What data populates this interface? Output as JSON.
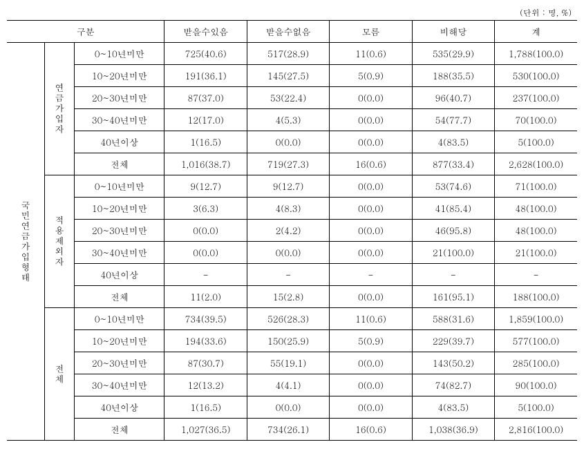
{
  "unit_label": "(단위 : 명, %)",
  "header": {
    "category": "구분",
    "col1": "받을수있음",
    "col2": "받을수없음",
    "col3": "모름",
    "col4": "비해당",
    "col5": "계"
  },
  "main_cat": "국민연금가입형태",
  "groups": [
    {
      "label": "연금가입자",
      "rows": [
        {
          "range": "0~10년미만",
          "c1": "725(40.6)",
          "c2": "517(28.9)",
          "c3": "11(0.6)",
          "c4": "535(29.9)",
          "c5": "1,788(100.0)"
        },
        {
          "range": "10~20년미만",
          "c1": "191(36.1)",
          "c2": "145(27.5)",
          "c3": "5(0.9)",
          "c4": "188(35.5)",
          "c5": "530(100.0)"
        },
        {
          "range": "20~30년미만",
          "c1": "87(37.0)",
          "c2": "53(22.4)",
          "c3": "0(0.0)",
          "c4": "96(40.7)",
          "c5": "237(100.0)"
        },
        {
          "range": "30~40년미만",
          "c1": "12(17.0)",
          "c2": "4(5.3)",
          "c3": "0(0.0)",
          "c4": "54(77.7)",
          "c5": "70(100.0)"
        },
        {
          "range": "40년이상",
          "c1": "1(16.5)",
          "c2": "0(0.0)",
          "c3": "0(0.0)",
          "c4": "4(83.5)",
          "c5": "5(100.0)"
        },
        {
          "range": "전체",
          "c1": "1,016(38.7)",
          "c2": "719(27.3)",
          "c3": "16(0.6)",
          "c4": "877(33.4)",
          "c5": "2,628(100.0)"
        }
      ]
    },
    {
      "label": "적용제외자",
      "rows": [
        {
          "range": "0~10년미만",
          "c1": "9(12.7)",
          "c2": "9(12.7)",
          "c3": "0(0.0)",
          "c4": "53(74.6)",
          "c5": "71(100.0)"
        },
        {
          "range": "10~20년미만",
          "c1": "3(6.3)",
          "c2": "4(8.3)",
          "c3": "0(0.0)",
          "c4": "41(85.4)",
          "c5": "48(100.0)"
        },
        {
          "range": "20~30년미만",
          "c1": "0(0.0)",
          "c2": "2(4.2)",
          "c3": "0(0.0)",
          "c4": "46(95.8)",
          "c5": "48(100.0)"
        },
        {
          "range": "30~40년미만",
          "c1": "0(0.0)",
          "c2": "0(0.0)",
          "c3": "0(0.0)",
          "c4": "21(100.0)",
          "c5": "21(100.0)"
        },
        {
          "range": "40년이상",
          "c1": "-",
          "c2": "-",
          "c3": "-",
          "c4": "-",
          "c5": "-"
        },
        {
          "range": "전체",
          "c1": "11(2.0)",
          "c2": "15(2.8)",
          "c3": "0(0.0)",
          "c4": "161(95.1)",
          "c5": "188(100.0)"
        }
      ]
    },
    {
      "label": "전체",
      "rows": [
        {
          "range": "0~10년미만",
          "c1": "734(39.5)",
          "c2": "526(28.3)",
          "c3": "11(0.6)",
          "c4": "588(31.6)",
          "c5": "1,859(100.0)"
        },
        {
          "range": "10~20년미만",
          "c1": "194(33.6)",
          "c2": "150(25.9)",
          "c3": "5(0.9)",
          "c4": "229(39.7)",
          "c5": "577(100.0)"
        },
        {
          "range": "20~30년미만",
          "c1": "87(30.7)",
          "c2": "55(19.1)",
          "c3": "0(0.0)",
          "c4": "143(50.2)",
          "c5": "285(100.0)"
        },
        {
          "range": "30~40년미만",
          "c1": "12(13.2)",
          "c2": "4(4.1)",
          "c3": "0(0.0)",
          "c4": "74(82.7)",
          "c5": "90(100.0)"
        },
        {
          "range": "40년이상",
          "c1": "1(16.5)",
          "c2": "0(0.0)",
          "c3": "0(0.0)",
          "c4": "4(83.5)",
          "c5": "5(100.0)"
        },
        {
          "range": "전체",
          "c1": "1,027(36.5)",
          "c2": "734(26.1)",
          "c3": "16(0.6)",
          "c4": "1,038(36.9)",
          "c5": "2,816(100.0)"
        }
      ]
    }
  ]
}
